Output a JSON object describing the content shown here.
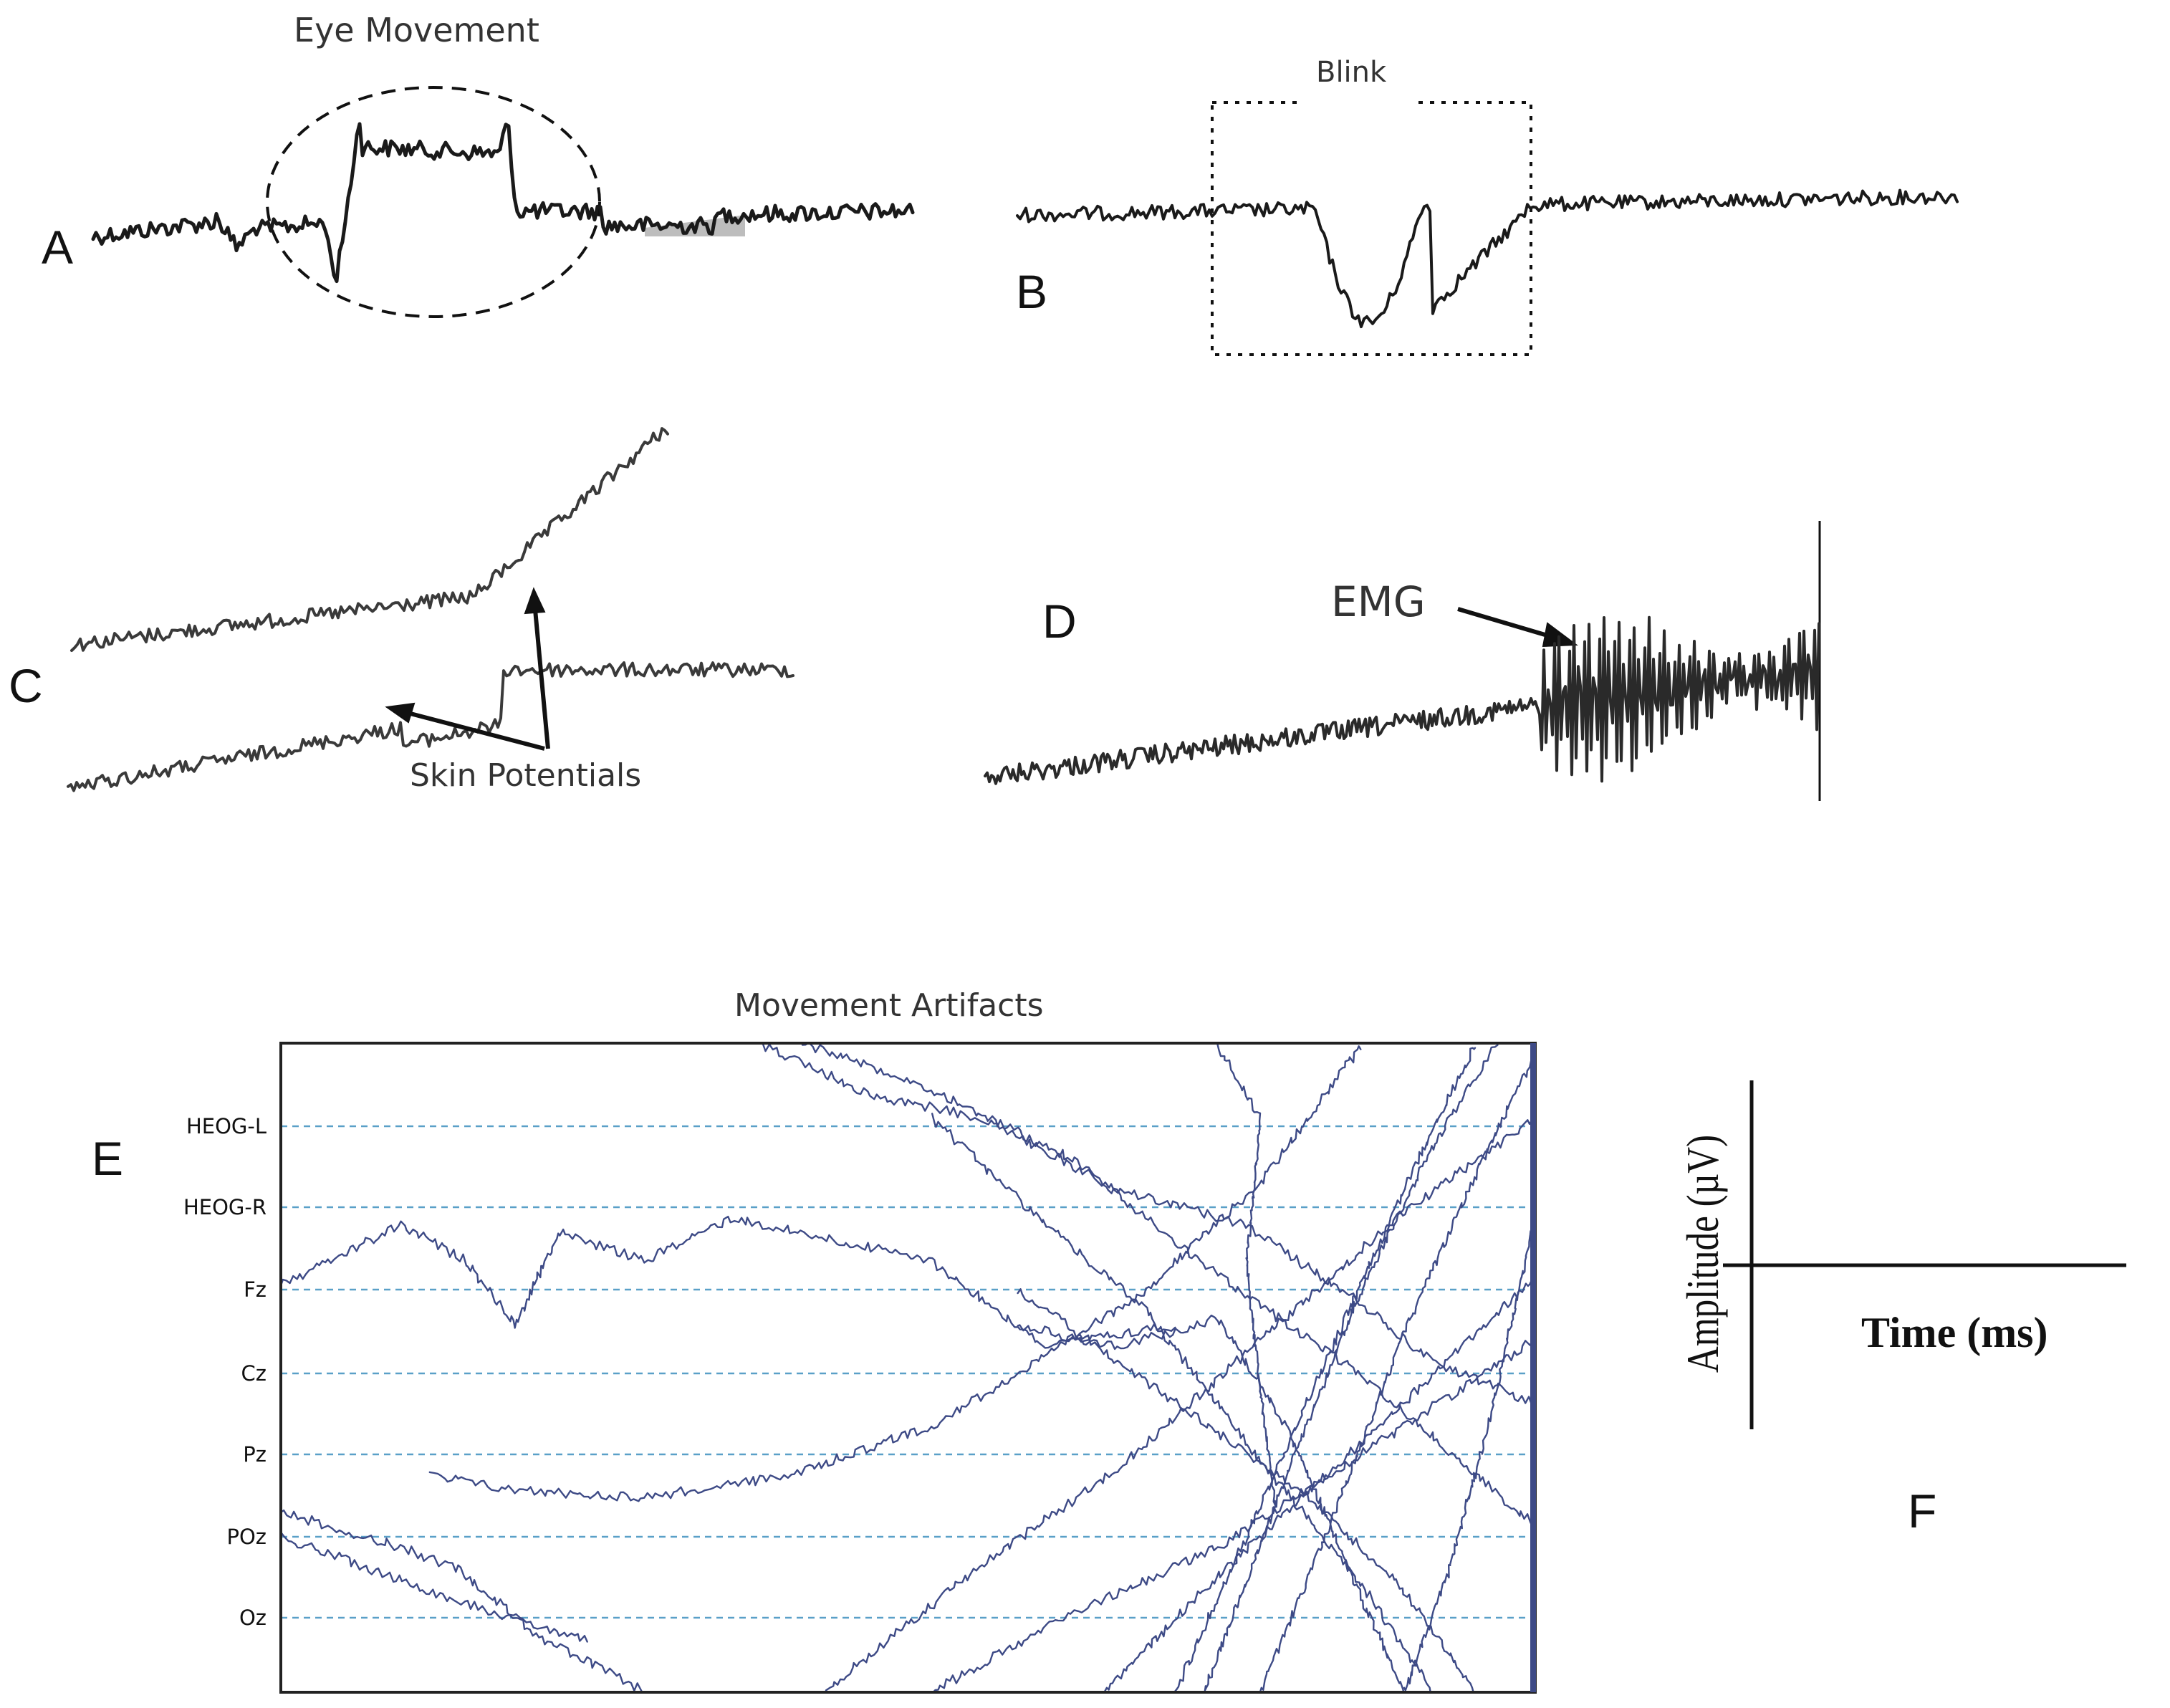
{
  "panels": {
    "a": {
      "label": "A",
      "annotation": "Eye Movement"
    },
    "b": {
      "label": "B",
      "annotation": "Blink"
    },
    "c": {
      "label": "C",
      "annotation": "Skin Potentials"
    },
    "d": {
      "label": "D",
      "annotation": "EMG"
    },
    "e": {
      "label": "E",
      "title": "Movement Artifacts",
      "channels": [
        "HEOG-L",
        "HEOG-R",
        "Fz",
        "Cz",
        "Pz",
        "POz",
        "Oz"
      ]
    },
    "f": {
      "label": "F",
      "y_axis": "Amplitude (µV)",
      "x_axis": "Time (ms)"
    }
  },
  "colors": {
    "trace_dark": "#1a1a1a",
    "trace_gray": "#3a3a3a",
    "eeg_trace": "#3d4a86",
    "eeg_grid": "#5aa0c8",
    "shade": "#bdbdbd"
  }
}
